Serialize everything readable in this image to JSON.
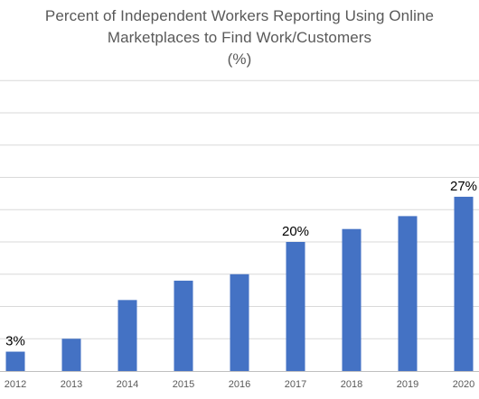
{
  "chart_data": {
    "type": "bar",
    "title_lines": [
      "Percent of Independent Workers Reporting Using Online",
      "Marketplaces to Find Work/Customers",
      "(%)"
    ],
    "categories": [
      "2012",
      "2013",
      "2014",
      "2015",
      "2016",
      "2017",
      "2018",
      "2019",
      "2020"
    ],
    "values": [
      3,
      5,
      11,
      14,
      15,
      20,
      22,
      24,
      27
    ],
    "data_labels": [
      {
        "category": "2012",
        "text": "3%"
      },
      {
        "category": "2017",
        "text": "20%"
      },
      {
        "category": "2020",
        "text": "27%"
      }
    ],
    "xlabel": "",
    "ylabel": "",
    "ylim": [
      0,
      45
    ],
    "gridlines": true,
    "legend": false,
    "colors": {
      "bar": "#4472C4",
      "grid": "#D9D9D9",
      "axis": "#BFBFBF",
      "title": "#595959"
    }
  }
}
